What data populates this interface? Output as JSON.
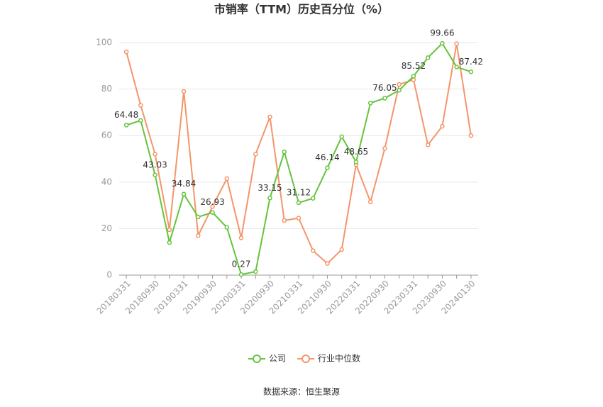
{
  "chart_data": {
    "type": "line",
    "title": "市销率（TTM）历史百分位（%）",
    "categories": [
      "20180331",
      null,
      "20180930",
      null,
      "20190331",
      null,
      "20190930",
      null,
      "20200331",
      null,
      "20200930",
      null,
      "20210331",
      null,
      "20210930",
      null,
      "20220331",
      null,
      "20220930",
      null,
      "20230331",
      null,
      "20230930",
      null,
      "20240130"
    ],
    "series": [
      {
        "name": "公司",
        "color": "#64c43c",
        "values": [
          64.48,
          66.5,
          43.03,
          14,
          34.84,
          25,
          26.93,
          20.5,
          0.27,
          1.5,
          33.15,
          53,
          31.12,
          33,
          46.14,
          59.5,
          48.65,
          74,
          76.05,
          79.5,
          85.52,
          93.5,
          99.66,
          89.5,
          87.42
        ],
        "value_labels": [
          "64.48",
          null,
          "43.03",
          null,
          "34.84",
          null,
          "26.93",
          null,
          "0.27",
          null,
          "33.15",
          null,
          "31.12",
          null,
          "46.14",
          null,
          "48.65",
          null,
          "76.05",
          null,
          "85.52",
          null,
          "99.66",
          null,
          "87.42"
        ]
      },
      {
        "name": "行业中位数",
        "color": "#f4956a",
        "values": [
          96,
          73,
          52,
          19.5,
          79,
          17,
          29.5,
          41.5,
          16,
          52,
          68,
          23.5,
          24.5,
          10.5,
          5,
          11,
          47.5,
          31.5,
          54.5,
          82,
          84,
          56,
          64,
          99.5,
          60
        ]
      }
    ],
    "ylim": [
      0,
      100
    ],
    "yticks": [
      0,
      20,
      40,
      60,
      80,
      100
    ],
    "grid": true,
    "source": "数据来源：恒生聚源"
  }
}
